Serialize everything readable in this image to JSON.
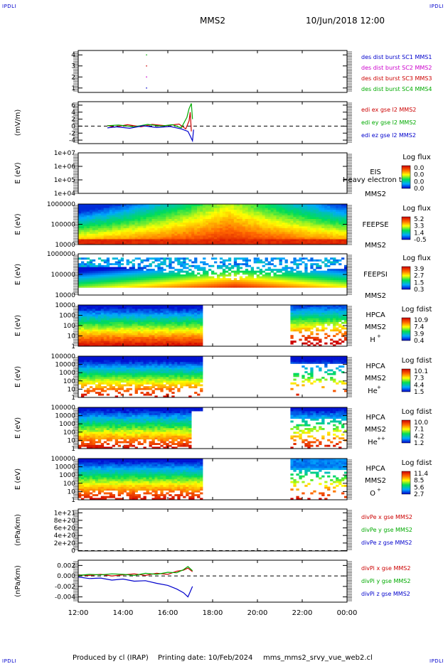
{
  "header": {
    "corner_label": "IPDLI",
    "spacecraft": "MMS2",
    "datetime": "10/Jun/2018 12:00"
  },
  "footer": {
    "produced_by": "Produced by cl (IRAP)",
    "printing_date": "Printing date: 10/Feb/2024",
    "filename": "mms_mms2_srvy_vue_web2.cl"
  },
  "time_axis": {
    "ticks": [
      "12:00",
      "14:00",
      "16:00",
      "18:00",
      "20:00",
      "22:00",
      "00:00"
    ],
    "hours": [
      12,
      14,
      16,
      18,
      20,
      22,
      24
    ],
    "range": [
      12,
      24
    ]
  },
  "chart_data": [
    {
      "id": "p1",
      "type": "line",
      "ylabel": "",
      "yticks": [
        "1",
        "2",
        "3",
        "4"
      ],
      "ytick_values": [
        1,
        2,
        3,
        4
      ],
      "ylim": [
        0.6,
        4.4
      ],
      "legend": [
        {
          "text": "des dist burst SC1 MMS1",
          "color": "#0000cc"
        },
        {
          "text": "des dist burst SC2 MMS2",
          "color": "#cc00cc"
        },
        {
          "text": "des dist burst SC3 MMS3",
          "color": "#cc0000"
        },
        {
          "text": "des dist burst SC4 MMS4",
          "color": "#00aa00"
        }
      ],
      "series": [
        {
          "name": "des dist burst SC1 MMS1",
          "color": "#0000cc",
          "points": [
            [
              15.05,
              1
            ]
          ]
        },
        {
          "name": "des dist burst SC2 MMS2",
          "color": "#cc00cc",
          "points": [
            [
              15.05,
              2
            ]
          ]
        },
        {
          "name": "des dist burst SC3 MMS3",
          "color": "#cc0000",
          "points": [
            [
              15.05,
              3
            ]
          ]
        },
        {
          "name": "des dist burst SC4 MMS4",
          "color": "#00aa00",
          "points": [
            [
              15.05,
              4
            ]
          ]
        }
      ]
    },
    {
      "id": "p2",
      "type": "line",
      "ylabel": "(mV/m)",
      "yticks": [
        "-4",
        "-2",
        "0",
        "2",
        "4",
        "6"
      ],
      "ytick_values": [
        -4,
        -2,
        0,
        2,
        4,
        6
      ],
      "ylim": [
        -5,
        7
      ],
      "zero_line": true,
      "legend": [
        {
          "text": "edi ex gse l2 MMS2",
          "color": "#cc0000"
        },
        {
          "text": "edi ey gse l2 MMS2",
          "color": "#00aa00"
        },
        {
          "text": "edi ez gse l2 MMS2",
          "color": "#0000cc"
        }
      ],
      "series": [
        {
          "name": "edi ex gse l2 MMS2",
          "color": "#cc0000",
          "x": [
            13.3,
            13.6,
            14.2,
            14.8,
            15.3,
            15.9,
            16.5,
            16.8,
            16.95,
            17.0,
            17.05
          ],
          "y": [
            0.2,
            -0.3,
            0.4,
            -0.2,
            0.5,
            0.1,
            0.6,
            -0.8,
            1.5,
            4.0,
            -1.5
          ]
        },
        {
          "name": "edi ey gse l2 MMS2",
          "color": "#00aa00",
          "x": [
            13.3,
            13.8,
            14.5,
            15.1,
            15.7,
            16.2,
            16.6,
            16.85,
            16.95,
            17.05,
            17.1
          ],
          "y": [
            0.1,
            0.3,
            -0.2,
            0.5,
            0.0,
            0.4,
            -0.5,
            2.5,
            5.0,
            6.5,
            2.0
          ]
        },
        {
          "name": "edi ez gse l2 MMS2",
          "color": "#0000cc",
          "x": [
            13.3,
            13.7,
            14.3,
            14.9,
            15.5,
            16.1,
            16.6,
            16.9,
            17.0,
            17.1,
            17.15
          ],
          "y": [
            -0.5,
            -0.2,
            -0.6,
            0.1,
            -0.4,
            -0.1,
            -0.8,
            -1.5,
            -2.8,
            -4.2,
            -1.0
          ]
        }
      ]
    },
    {
      "id": "p3",
      "type": "heatmap",
      "ylabel": "E (eV)",
      "yticks": [
        "1e+04",
        "1e+05",
        "1e+06",
        "1e+07"
      ],
      "instrument": "EIS",
      "side_label": "Heavy electron to",
      "spacecraft": "MMS2",
      "colorbar_title": "Log flux",
      "colorbar_ticks": [
        "0.0",
        "0.0",
        "0.0",
        "0.0"
      ],
      "coverage": []
    },
    {
      "id": "p4",
      "type": "heatmap",
      "ylabel": "E (eV)",
      "yticks": [
        "10000",
        "100000",
        "1000000"
      ],
      "instrument": "FEEPSE",
      "spacecraft": "MMS2",
      "colorbar_title": "Log flux",
      "colorbar_ticks": [
        "5.2",
        "3.3",
        "1.4",
        "-0.5"
      ],
      "coverage": [
        [
          12,
          24
        ]
      ],
      "pattern": "feepse"
    },
    {
      "id": "p5",
      "type": "heatmap",
      "ylabel": "E (eV)",
      "yticks": [
        "10000",
        "100000",
        "1000000"
      ],
      "instrument": "FEEPSI",
      "spacecraft": "MMS2",
      "colorbar_title": "Log flux",
      "colorbar_ticks": [
        "3.9",
        "2.7",
        "1.5",
        "0.3"
      ],
      "coverage": [
        [
          12,
          24
        ]
      ],
      "pattern": "feepsi"
    },
    {
      "id": "p6",
      "type": "heatmap",
      "ylabel": "E (eV)",
      "yticks": [
        "1",
        "10",
        "100",
        "1000",
        "10000"
      ],
      "instrument": "HPCA",
      "spacecraft": "MMS2",
      "species": "H",
      "species_sup": "+",
      "colorbar_title": "Log fdist",
      "colorbar_ticks": [
        "10.9",
        "7.4",
        "3.9",
        "0.4"
      ],
      "coverage": [
        [
          12,
          17.5
        ],
        [
          21.5,
          24
        ]
      ],
      "pattern": "hpca_h"
    },
    {
      "id": "p7",
      "type": "heatmap",
      "ylabel": "E (eV)",
      "yticks": [
        "1",
        "10",
        "100",
        "1000",
        "10000",
        "100000"
      ],
      "instrument": "HPCA",
      "spacecraft": "MMS2",
      "species": "He",
      "species_sup": "+",
      "colorbar_title": "Log fdist",
      "colorbar_ticks": [
        "10.1",
        "7.3",
        "4.4",
        "1.5"
      ],
      "coverage": [
        [
          12,
          17.5
        ],
        [
          21.5,
          24
        ]
      ],
      "pattern": "hpca_he"
    },
    {
      "id": "p8",
      "type": "heatmap",
      "ylabel": "E (eV)",
      "yticks": [
        "1",
        "10",
        "100",
        "1000",
        "10000",
        "100000"
      ],
      "instrument": "HPCA",
      "spacecraft": "MMS2",
      "species": "He",
      "species_sup": "++",
      "colorbar_title": "Log fdist",
      "colorbar_ticks": [
        "10.0",
        "7.1",
        "4.2",
        "1.2"
      ],
      "coverage": [
        [
          12,
          17.5
        ],
        [
          21.5,
          24
        ]
      ],
      "pattern": "hpca_hepp"
    },
    {
      "id": "p9",
      "type": "heatmap",
      "ylabel": "E (eV)",
      "yticks": [
        "1",
        "10",
        "100",
        "1000",
        "10000",
        "100000"
      ],
      "instrument": "HPCA",
      "spacecraft": "MMS2",
      "species": "O",
      "species_sup": "+",
      "colorbar_title": "Log fdist",
      "colorbar_ticks": [
        "11.4",
        "8.5",
        "5.6",
        "2.7"
      ],
      "coverage": [
        [
          12,
          17.5
        ],
        [
          21.5,
          24
        ]
      ],
      "pattern": "hpca_o"
    },
    {
      "id": "p10",
      "type": "line",
      "ylabel": "(nPa/km)",
      "yticks": [
        "0",
        "2e+20",
        "4e+20",
        "6e+20",
        "8e+20",
        "1e+21"
      ],
      "ytick_values": [
        0,
        2e+20,
        4e+20,
        6e+20,
        8e+20,
        1e+21
      ],
      "ylim": [
        -1e+19,
        1.1e+21
      ],
      "zero_line": true,
      "legend": [
        {
          "text": "divPe x gse MMS2",
          "color": "#cc0000"
        },
        {
          "text": "divPe y gse MMS2",
          "color": "#00aa00"
        },
        {
          "text": "divPe z gse MMS2",
          "color": "#0000cc"
        }
      ],
      "series": []
    },
    {
      "id": "p11",
      "type": "line",
      "ylabel": "(nPa/km)",
      "yticks": [
        "-0.004",
        "-0.002",
        "0.000",
        "0.002"
      ],
      "ytick_values": [
        -0.004,
        -0.002,
        0,
        0.002
      ],
      "ylim": [
        -0.005,
        0.003
      ],
      "zero_line": true,
      "legend": [
        {
          "text": "divPi x gse MMS2",
          "color": "#cc0000"
        },
        {
          "text": "divPi y gse MMS2",
          "color": "#00aa00"
        },
        {
          "text": "divPi z gse MMS2",
          "color": "#0000cc"
        }
      ],
      "series": [
        {
          "name": "divPi x gse MMS2",
          "color": "#cc0000",
          "x": [
            12.0,
            12.5,
            13.0,
            13.5,
            14.0,
            14.5,
            15.0,
            15.5,
            16.0,
            16.4,
            16.7,
            16.9,
            17.1
          ],
          "y": [
            0.0002,
            0.0001,
            0.0003,
            0.0,
            0.0002,
            0.0004,
            0.0001,
            0.0005,
            0.0003,
            0.0009,
            0.0011,
            0.0015,
            0.0008
          ]
        },
        {
          "name": "divPi y gse MMS2",
          "color": "#00aa00",
          "x": [
            12.0,
            12.5,
            13.0,
            13.5,
            14.0,
            14.5,
            15.0,
            15.5,
            16.0,
            16.4,
            16.7,
            16.9,
            17.1
          ],
          "y": [
            0.0001,
            0.0003,
            0.0002,
            0.0004,
            0.0003,
            0.0001,
            0.0005,
            0.0003,
            0.0007,
            0.0006,
            0.0012,
            0.0018,
            0.001
          ]
        },
        {
          "name": "divPi z gse MMS2",
          "color": "#0000cc",
          "x": [
            12.0,
            12.5,
            13.0,
            13.5,
            14.0,
            14.5,
            15.0,
            15.5,
            16.0,
            16.4,
            16.7,
            16.9,
            17.1
          ],
          "y": [
            -0.0002,
            -0.0005,
            -0.0004,
            -0.0008,
            -0.0006,
            -0.001,
            -0.0009,
            -0.0014,
            -0.0018,
            -0.0025,
            -0.0032,
            -0.004,
            -0.002
          ]
        }
      ]
    }
  ]
}
